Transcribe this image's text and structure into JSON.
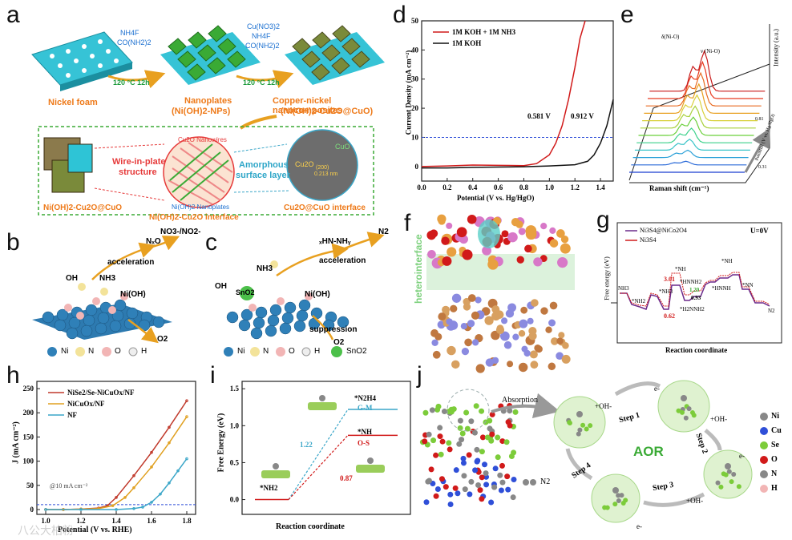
{
  "panels": {
    "a": {
      "label": "a",
      "reagent1": [
        "NH4F",
        "CO(NH2)2"
      ],
      "cond1": "120 °C  12h",
      "reagent2": [
        "Cu(NO3)2",
        "NH4F",
        "CO(NH2)2"
      ],
      "cond2": "120 °C  12h",
      "stage1": "Nickel foam",
      "stage2": [
        "Nanoplates",
        "(Ni(OH)2-NPs)"
      ],
      "stage3": [
        "Copper-nickel nanocomposites",
        "(Ni(OH)2-Cu2O@CuO)"
      ],
      "wire_in_plate": [
        "Wire-in-plate",
        "structure"
      ],
      "nanowires": "Cu2O Nanowires",
      "nanoplates": "Ni(OH)2 Nanoplates",
      "amorphous": [
        "Amorphous",
        "surface layer"
      ],
      "cuo": "CuO",
      "cu2o": "Cu2O",
      "lattice": [
        "(200)",
        "0.213 nm"
      ],
      "bottom": [
        "Ni(OH)2-Cu2O@CuO",
        "Ni(OH)2-Cu2O interface",
        "Cu2O@CuO interface"
      ]
    },
    "b": {
      "label": "b",
      "top_left": "NₓO",
      "top_right": "NO3-/NO2-",
      "acceleration": "acceleration",
      "oh": "OH",
      "nh3": "NH3",
      "nioh": "Ni(OH)",
      "o2": "O2",
      "legend": [
        "Ni",
        "N",
        "O",
        "H"
      ]
    },
    "c": {
      "label": "c",
      "top_left": "ₓHN-NHᵧ",
      "top_right": "N2",
      "acceleration": "acceleration",
      "suppression": "suppression",
      "oh": "OH",
      "nh3": "NH3",
      "sno2": "SnO2",
      "nioh": "Ni(OH)",
      "o2": "O2",
      "legend": [
        "Ni",
        "N",
        "O",
        "H",
        "SnO2"
      ]
    },
    "d": {
      "label": "d",
      "ylabel": "Current Density (mA cm⁻²)",
      "xlabel": "Potential (V vs. Hg/HgO)",
      "ann1": "0.581 V",
      "ann2": "0.912 V"
    },
    "e": {
      "label": "e",
      "xlabel": "Raman shift (cm⁻¹)",
      "ylabel": "Intensity (a.u.)",
      "zlabel": "Potential (V vs. Hg/HgO)",
      "peak1": "δ(Ni-O)",
      "peak2": "ν (Ni-O)",
      "z_top": "0.81",
      "z_bot": "0.31"
    },
    "f": {
      "label": "f",
      "side": "heterointerface"
    },
    "g": {
      "label": "g",
      "legend": [
        "Ni3S4@NiCo2O4",
        "Ni3S4"
      ],
      "cond": "U=0V",
      "ylabel": "Free energy (eV)",
      "xlabel": "Reaction coordinate",
      "species": [
        "NH3",
        "*NH3",
        "*NH2",
        "*NH",
        "*HNNH2",
        "*H2NNH2",
        "*NH",
        "*HNNH",
        "*NN",
        "N2"
      ],
      "vals": [
        "3.01",
        "1.20",
        "0.93",
        "0.62"
      ]
    },
    "h": {
      "label": "h",
      "ylabel": "J (mA cm⁻²)",
      "xlabel": "Potential (V vs. RHE)",
      "ann": "@10 mA cm⁻²",
      "watermark": "八公大柏粉"
    },
    "i": {
      "label": "i",
      "ylabel": "Free Energy (eV)",
      "xlabel": "Reaction coordinate",
      "start": "*NH2",
      "gm_species": "*N2H4",
      "gm": "G-M",
      "os_species": "*NH",
      "os": "O-S",
      "v1": "1.22",
      "v2": "0.87"
    },
    "j": {
      "label": "j",
      "absorption": "Absorption",
      "steps": [
        "Step 1",
        "Step 2",
        "Step 3",
        "Step 4"
      ],
      "center": "AOR",
      "oh": "+OH-",
      "e": "e-",
      "n2": "N2",
      "legend": [
        "Ni",
        "Cu",
        "Se",
        "O",
        "N",
        "H"
      ]
    }
  },
  "colors": {
    "teal": "#2ec4d6",
    "green": "#3aaa35",
    "orange": "#ee7a1a",
    "red": "#d11a1a",
    "blue_dash": "#2f4fd8",
    "purple": "#7b2d8b"
  },
  "chart_data": [
    {
      "type": "line",
      "panel": "d",
      "series": [
        {
          "name": "1M KOH + 1M NH3",
          "color": "#d11a1a",
          "x": [
            0,
            0.2,
            0.4,
            0.6,
            0.8,
            0.9,
            1.0,
            1.05,
            1.1,
            1.15,
            1.2,
            1.24,
            1.28
          ],
          "y": [
            0,
            0.2,
            0.5,
            0.4,
            0.3,
            1.0,
            4.0,
            8.0,
            14.0,
            23.0,
            34.0,
            44.0,
            50.0
          ]
        },
        {
          "name": "1M KOH",
          "color": "#111111",
          "x": [
            0,
            0.2,
            0.4,
            0.6,
            0.8,
            1.0,
            1.2,
            1.3,
            1.35,
            1.4,
            1.45,
            1.5
          ],
          "y": [
            -0.5,
            -0.5,
            -0.3,
            -0.2,
            -0.1,
            0.2,
            0.6,
            1.8,
            4.0,
            8.0,
            14.0,
            23.0
          ]
        }
      ],
      "xlim": [
        0,
        1.5
      ],
      "ylim": [
        -5,
        50
      ],
      "xticks": [
        0.0,
        0.2,
        0.4,
        0.6,
        0.8,
        1.0,
        1.2,
        1.4
      ],
      "yticks": [
        0,
        10,
        20,
        30,
        40,
        50
      ],
      "hline": 10
    },
    {
      "type": "line",
      "panel": "h",
      "series": [
        {
          "name": "NiSe2/Se-NiCuOx/NF",
          "color": "#c0392b",
          "x": [
            1.0,
            1.1,
            1.2,
            1.3,
            1.35,
            1.4,
            1.5,
            1.6,
            1.7,
            1.8
          ],
          "y": [
            0,
            0,
            1,
            3,
            8,
            25,
            70,
            118,
            170,
            225
          ]
        },
        {
          "name": "NiCuOx/NF",
          "color": "#e0a020",
          "x": [
            1.0,
            1.1,
            1.2,
            1.3,
            1.38,
            1.45,
            1.5,
            1.6,
            1.7,
            1.8
          ],
          "y": [
            0,
            0,
            1,
            2,
            8,
            25,
            45,
            88,
            138,
            192
          ]
        },
        {
          "name": "NF",
          "color": "#3aa6c8",
          "x": [
            1.0,
            1.2,
            1.4,
            1.5,
            1.55,
            1.6,
            1.65,
            1.7,
            1.75,
            1.8
          ],
          "y": [
            0,
            0,
            0,
            2,
            5,
            15,
            32,
            55,
            80,
            105
          ]
        }
      ],
      "xlim": [
        0.95,
        1.85
      ],
      "ylim": [
        -10,
        265
      ],
      "xticks": [
        1.0,
        1.2,
        1.4,
        1.6,
        1.8
      ],
      "yticks": [
        0,
        50,
        100,
        150,
        200,
        250
      ],
      "hline": 10
    },
    {
      "type": "line",
      "panel": "i",
      "series": [
        {
          "name": "G-M",
          "values": [
            0,
            1.22
          ]
        },
        {
          "name": "O-S",
          "values": [
            0,
            0.87
          ]
        }
      ],
      "yticks": [
        0.0,
        0.5,
        1.0,
        1.5
      ],
      "ylim": [
        -0.2,
        1.6
      ]
    }
  ]
}
